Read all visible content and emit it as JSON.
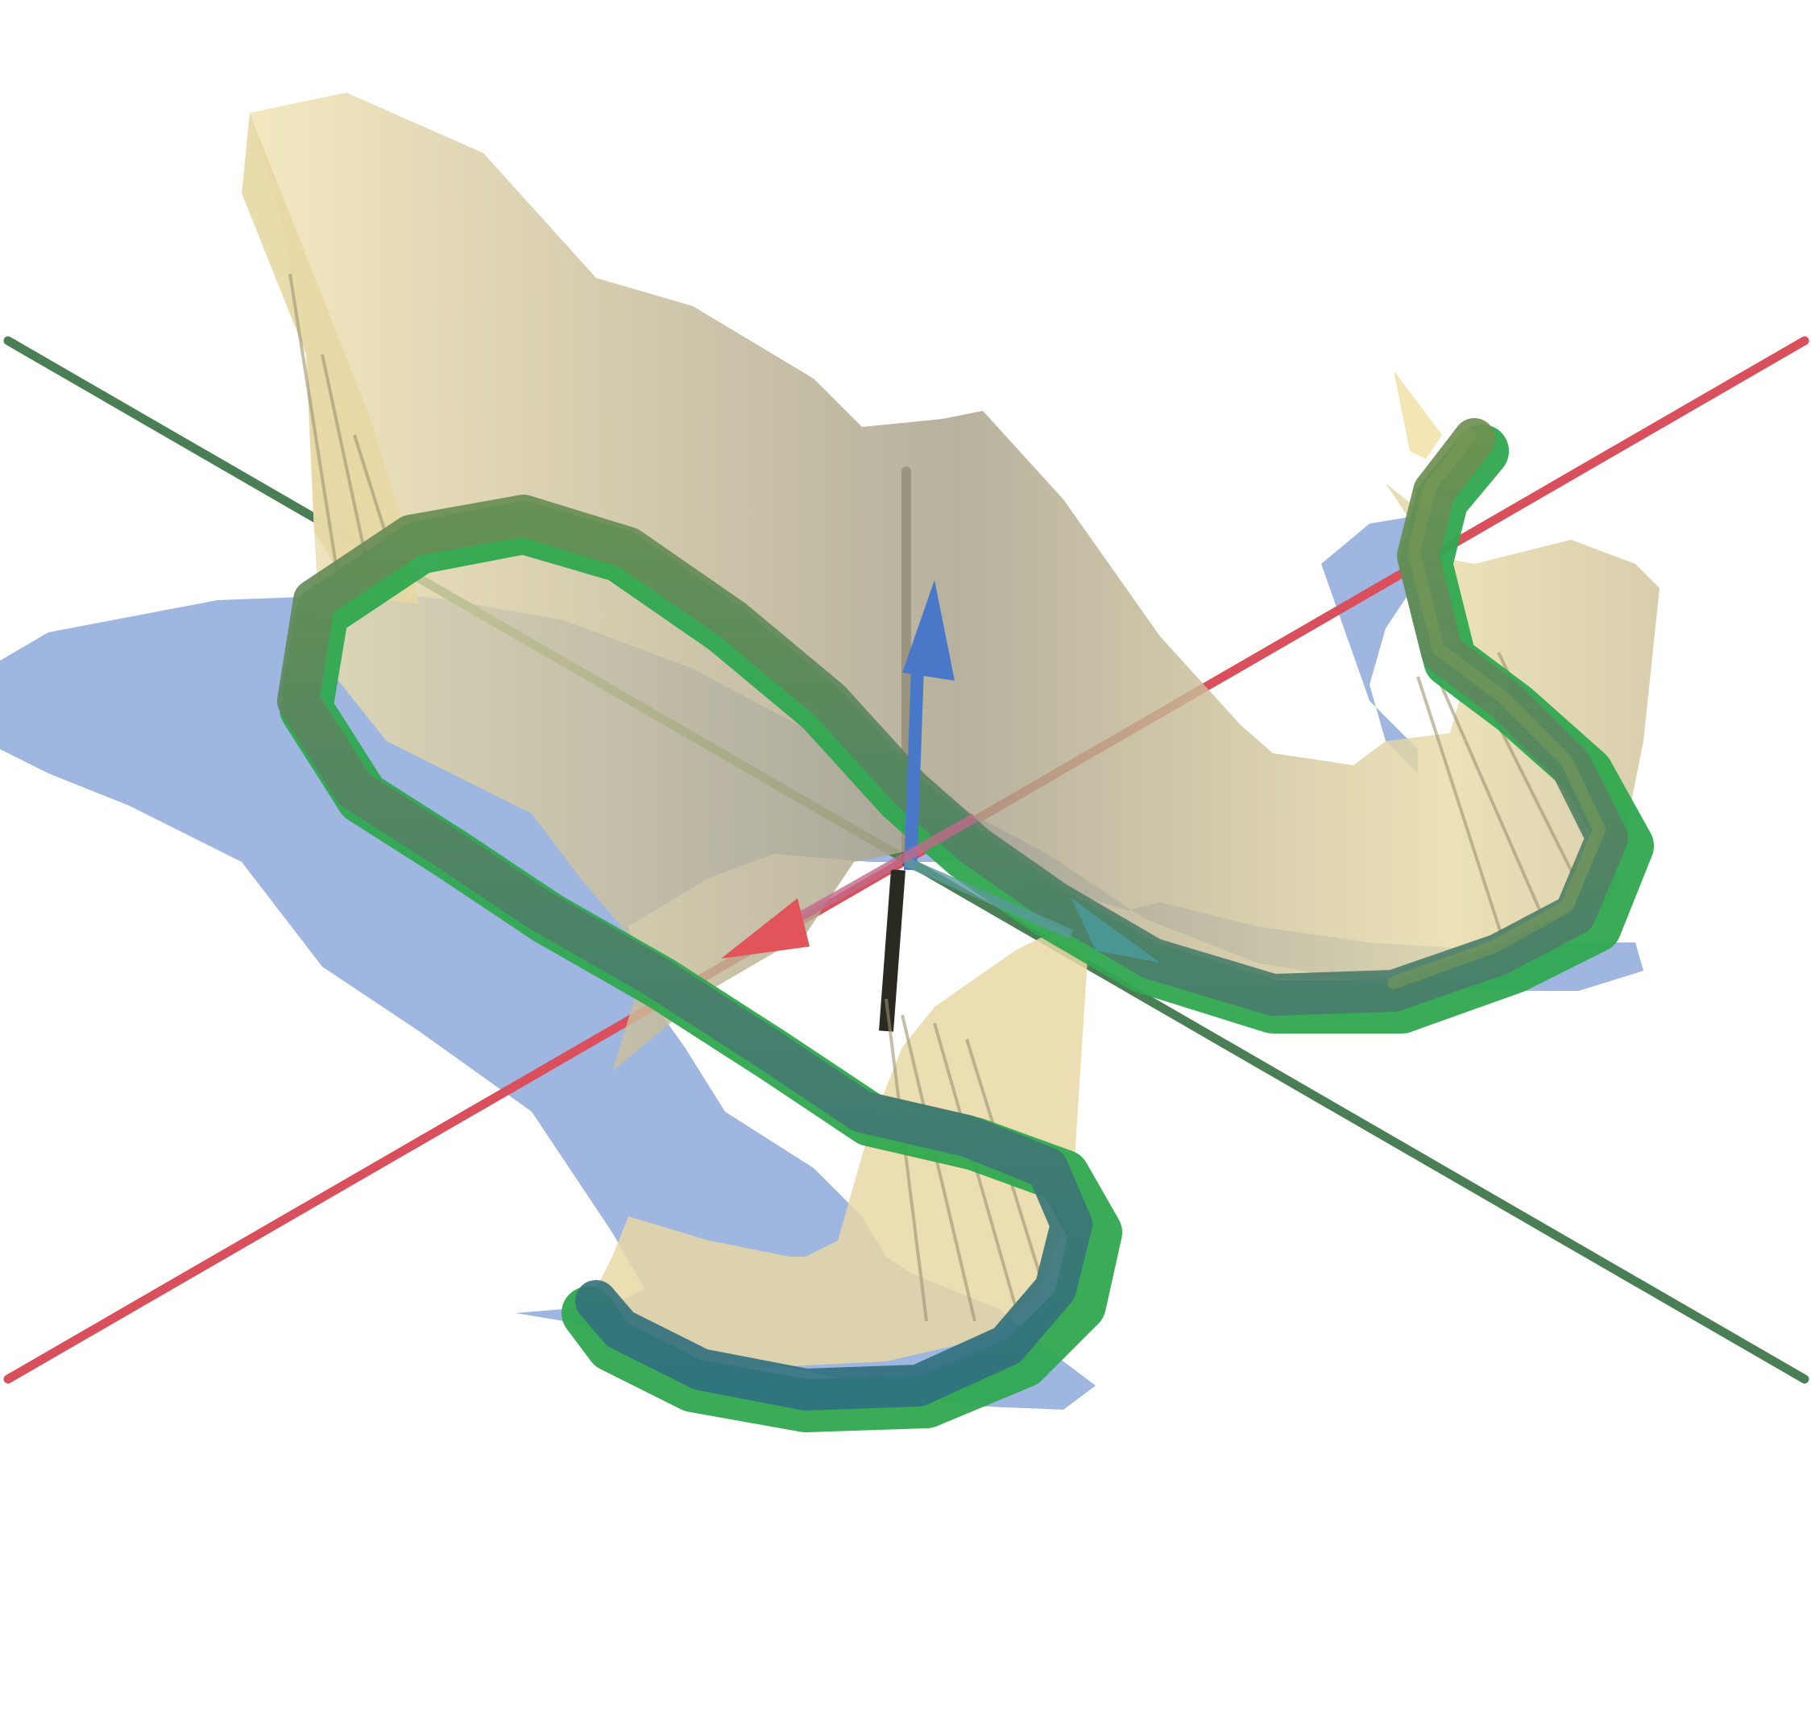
{
  "scene": {
    "background": "#ffffff",
    "colors": {
      "x_axis": "#d9505c",
      "y_axis": "#3f7a4c",
      "z_axis": "#3a3a3a",
      "x_arrow": "#e0545a",
      "y_arrow": "#4a9a9a",
      "z_arrow": "#4a78c8",
      "tube_green": "#2fa84f",
      "tube_teal": "#3a7f86",
      "ribbon_yellow": "#e8d9a0",
      "ribbon_dark": "#8d8a72",
      "shadow_blue": "#7f9fd6"
    },
    "objects": [
      "x-axis",
      "y-axis",
      "z-axis",
      "curve-tube",
      "swept-surface",
      "projected-shadow"
    ]
  }
}
